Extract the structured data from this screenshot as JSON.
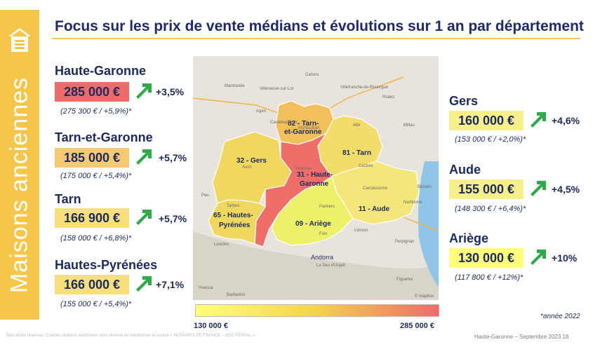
{
  "sidebar": {
    "label": "Maisons anciennes",
    "icon": "house-icon"
  },
  "title": "Focus sur les prix de vente médians et évolutions sur 1 an par département",
  "left_departments": [
    {
      "name": "Haute-Garonne",
      "price": "285 000 €",
      "evolution": "+3,5%",
      "previous": "(275 300 € / +5,9%)*",
      "color": "#ee6b6b"
    },
    {
      "name": "Tarn-et-Garonne",
      "price": "185 000 €",
      "evolution": "+5,7%",
      "previous": "(175 000 € / +5,4%)*",
      "color": "#f5c872"
    },
    {
      "name": "Tarn",
      "price": "166 900 €",
      "evolution": "+5,7%",
      "previous": "(158 000 € / +6,8%)*",
      "color": "#f7e07a"
    },
    {
      "name": "Hautes-Pyrénées",
      "price": "166 000 €",
      "evolution": "+7,1%",
      "previous": "(155 000 € / +5,4%)*",
      "color": "#f7e07a"
    }
  ],
  "right_departments": [
    {
      "name": "Gers",
      "price": "160 000 €",
      "evolution": "+4,6%",
      "previous": "(153 000 € / +2,0%)*",
      "color": "#f7ef8a"
    },
    {
      "name": "Aude",
      "price": "155 000 €",
      "evolution": "+4,5%",
      "previous": "(148 300 € / +6,4%)*",
      "color": "#f7ef8a"
    },
    {
      "name": "Ariège",
      "price": "130 000 €",
      "evolution": "+10%",
      "previous": "(117 800 € / +12%)*",
      "color": "#ffff7a"
    }
  ],
  "map": {
    "labels": {
      "gers": "32 - Gers",
      "tarn_et_garonne_1": "82 - Tarn-",
      "tarn_et_garonne_2": "et-Garonne",
      "tarn": "81 - Tarn",
      "haute_garonne_1": "31 - Haute-",
      "haute_garonne_2": "Garonne",
      "hautes_pyrenees_1": "65 - Hautes-",
      "hautes_pyrenees_2": "Pyrénées",
      "ariege": "09 - Ariège",
      "aude": "11 - Aude"
    },
    "cities": {
      "agen": "Agen",
      "montauban": "Montauban",
      "toulouse": "Toulouse",
      "albi": "Albi",
      "carcassonne": "Carcassonne",
      "tarbes": "Tarbes",
      "pamiers": "Pamiers",
      "andorra": "Andorra",
      "perpignan": "Perpignan",
      "beziers": "Béziers",
      "castres": "Castres",
      "marmande": "Marmande",
      "villeneuve": "Villeneuve-sur-Lot",
      "cahors": "Cahors",
      "rodez": "Rodez",
      "millau": "Millau",
      "auch": "Auch",
      "pau": "Pau",
      "lourdes": "Lourdes",
      "foix": "Foix",
      "seu": "La Seu d'Urgell",
      "huesca": "Huesca",
      "barbastro": "Barbastro",
      "figueres": "Figueres",
      "villefranche": "Villefranche-de-Rouergue",
      "castelsarrasin": "Castelsarrasin",
      "narbonne": "Narbonne",
      "limoux": "Limoux",
      "mapbox": "© mapbox"
    }
  },
  "legend": {
    "min": "130 000 €",
    "max": "285 000 €"
  },
  "footnote": "*année 2022",
  "footer": {
    "rights": "Tous droits réservés. Courtes citations autorisées sous réserve de mentionner la source « NOTAIRES DE FRANCE – BDD PERVAL ».",
    "page": "Haute-Garonne – Septembre 2023   18"
  },
  "colors": {
    "accent": "#f5c64a",
    "navy": "#1a2a5e",
    "arrow_green": "#2eaa4a"
  }
}
